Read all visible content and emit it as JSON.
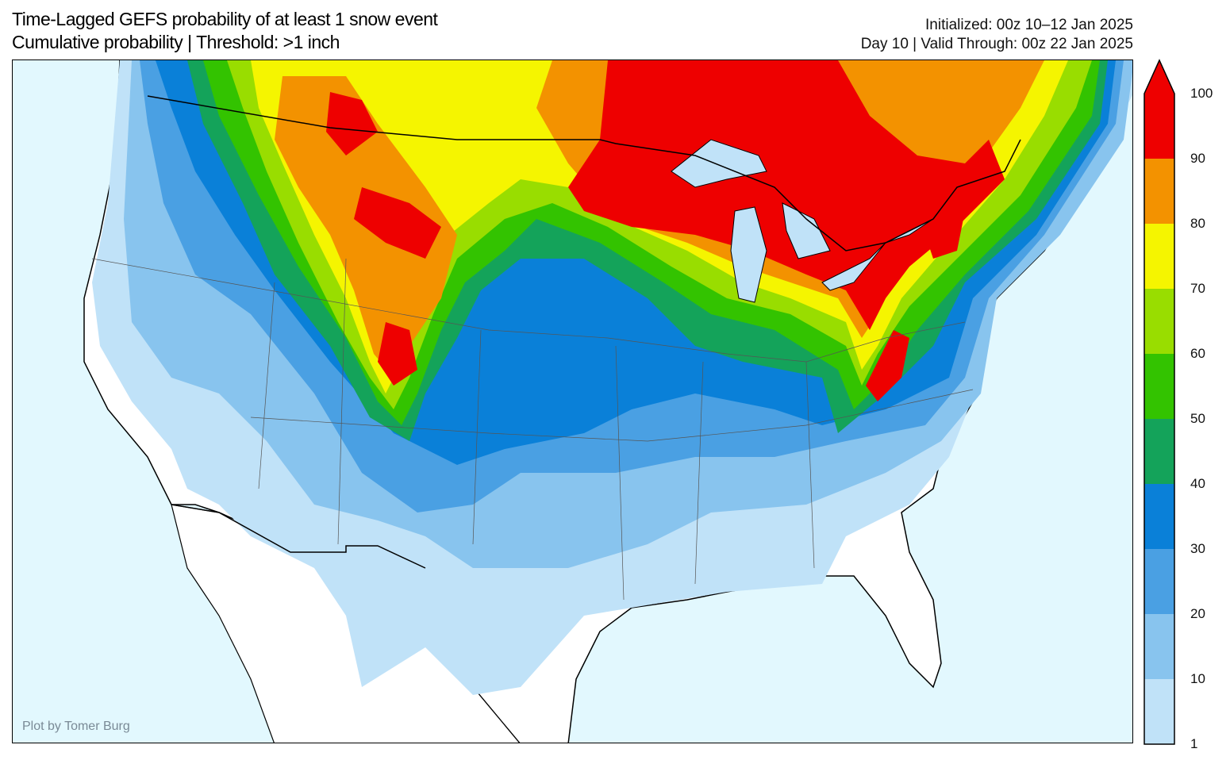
{
  "title": {
    "line1": "Time-Lagged GEFS probability of at least 1 snow event",
    "line2": "Cumulative probability | Threshold: >1 inch",
    "initialized": "Initialized: 00z 10–12 Jan 2025",
    "valid": "Day 10 | Valid Through: 00z 22 Jan 2025"
  },
  "credit": "Plot by Tomer Burg",
  "colorbar": {
    "ticks": [
      "1",
      "10",
      "20",
      "30",
      "40",
      "50",
      "60",
      "70",
      "80",
      "90",
      "100"
    ],
    "colors": [
      "#c0e2f8",
      "#88c4ee",
      "#4aa0e3",
      "#0a80d8",
      "#14a35a",
      "#33c300",
      "#99dd00",
      "#f5f500",
      "#f39200",
      "#ee0000"
    ],
    "extend": "max"
  },
  "map": {
    "ocean_color": "#e2f8fe",
    "land_color": "#ffffff",
    "region": "Contiguous United States"
  }
}
